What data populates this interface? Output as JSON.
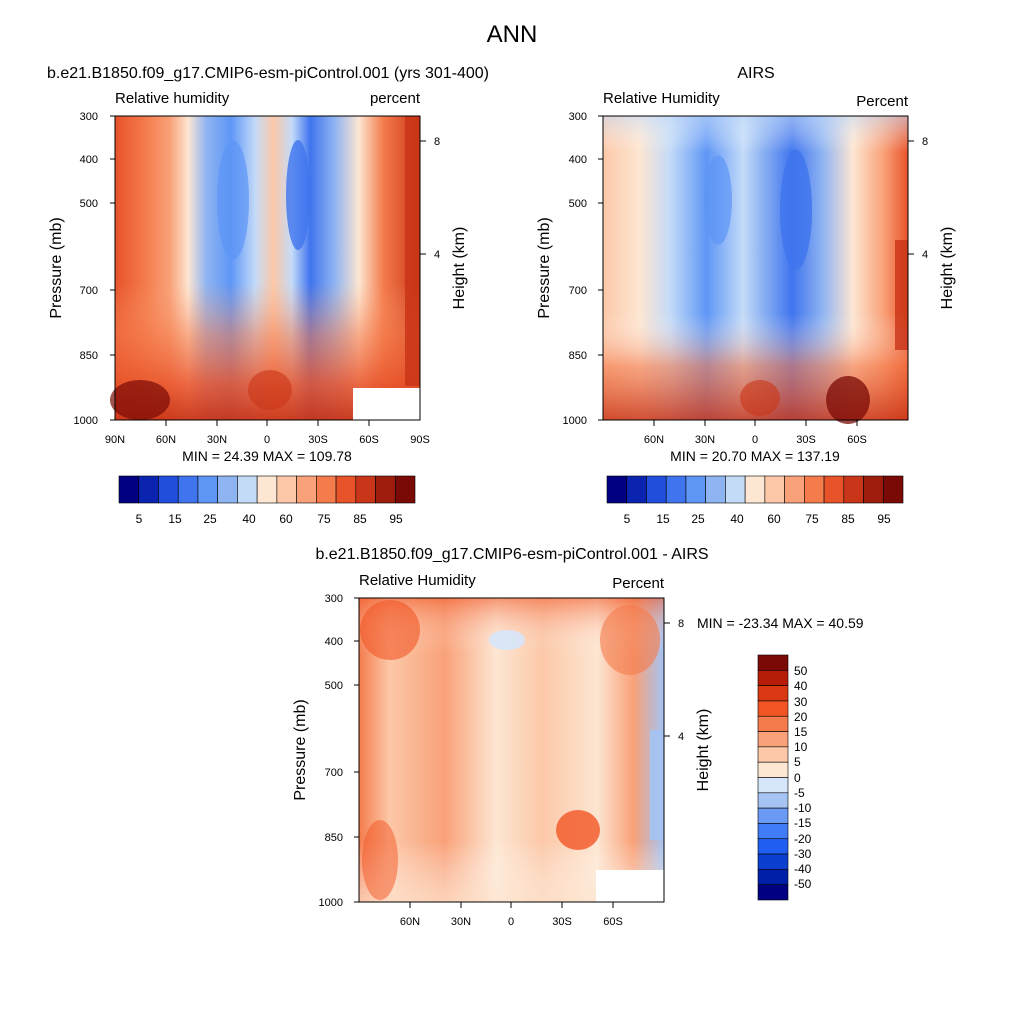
{
  "figure": {
    "title": "ANN",
    "panel_model_title": "b.e21.B1850.f09_g17.CMIP6-esm-piControl.001 (yrs 301-400)",
    "panel_obs_title": "AIRS",
    "panel_diff_title": "b.e21.B1850.f09_g17.CMIP6-esm-piControl.001 - AIRS"
  },
  "chart_data": [
    {
      "type": "heatmap",
      "id": "model",
      "title": "b.e21.B1850.f09_g17.CMIP6-esm-piControl.001 (yrs 301-400)",
      "left_label": "Relative humidity",
      "right_label": "percent",
      "ylabel": "Pressure (mb)",
      "y2label": "Height (km)",
      "xticks": [
        "90N",
        "60N",
        "30N",
        "0",
        "30S",
        "60S",
        "90S"
      ],
      "yticks": [
        "300",
        "400",
        "500",
        "700",
        "850",
        "1000"
      ],
      "y2ticks": [
        "8",
        "4"
      ],
      "xlim": [
        90,
        -90
      ],
      "ylim": [
        300,
        1000
      ],
      "stats": "MIN =  24.39  MAX = 109.78",
      "colorbar_labels": [
        "5",
        "15",
        "25",
        "40",
        "60",
        "75",
        "85",
        "95"
      ],
      "min": 24.39,
      "max": 109.78
    },
    {
      "type": "heatmap",
      "id": "obs",
      "title": "AIRS",
      "left_label": "Relative Humidity",
      "right_label": "Percent",
      "ylabel": "Pressure (mb)",
      "y2label": "Height (km)",
      "xticks": [
        "60N",
        "30N",
        "0",
        "30S",
        "60S"
      ],
      "yticks": [
        "300",
        "400",
        "500",
        "700",
        "850",
        "1000"
      ],
      "y2ticks": [
        "8",
        "4"
      ],
      "xlim": [
        90,
        -90
      ],
      "ylim": [
        300,
        1000
      ],
      "stats": "MIN =  20.70  MAX = 137.19",
      "colorbar_labels": [
        "5",
        "15",
        "25",
        "40",
        "60",
        "75",
        "85",
        "95"
      ],
      "min": 20.7,
      "max": 137.19
    },
    {
      "type": "heatmap",
      "id": "diff",
      "title": "b.e21.B1850.f09_g17.CMIP6-esm-piControl.001 - AIRS",
      "left_label": "Relative Humidity",
      "right_label": "Percent",
      "ylabel": "Pressure (mb)",
      "y2label": "Height (km)",
      "xticks": [
        "60N",
        "30N",
        "0",
        "30S",
        "60S"
      ],
      "yticks": [
        "300",
        "400",
        "500",
        "700",
        "850",
        "1000"
      ],
      "y2ticks": [
        "8",
        "4"
      ],
      "xlim": [
        90,
        -90
      ],
      "ylim": [
        300,
        1000
      ],
      "stats": "MIN = -23.34  MAX =  40.59",
      "colorbar_labels": [
        "50",
        "40",
        "30",
        "20",
        "15",
        "10",
        "5",
        "0",
        "-5",
        "-10",
        "-15",
        "-20",
        "-30",
        "-40",
        "-50"
      ],
      "min": -23.34,
      "max": 40.59
    }
  ],
  "colors": {
    "abs_scale": [
      "#000080",
      "#0b24b0",
      "#1f4fdc",
      "#3f74ee",
      "#5e96f6",
      "#8fb4f2",
      "#c4dbf8",
      "#fde6d2",
      "#fcc8a8",
      "#f9a178",
      "#f47b4c",
      "#e8532a",
      "#c93518",
      "#9e1d0c",
      "#7a0a05"
    ],
    "diff_scale": [
      "#000080",
      "#001fa8",
      "#0a3fd0",
      "#1f5ef0",
      "#3f7cf6",
      "#6a9af4",
      "#a5c3f3",
      "#d6e6fb",
      "#fde6d2",
      "#fcc8a8",
      "#f9a178",
      "#f47b4c",
      "#f15524",
      "#d93812",
      "#b61c07",
      "#7a0a05"
    ]
  }
}
